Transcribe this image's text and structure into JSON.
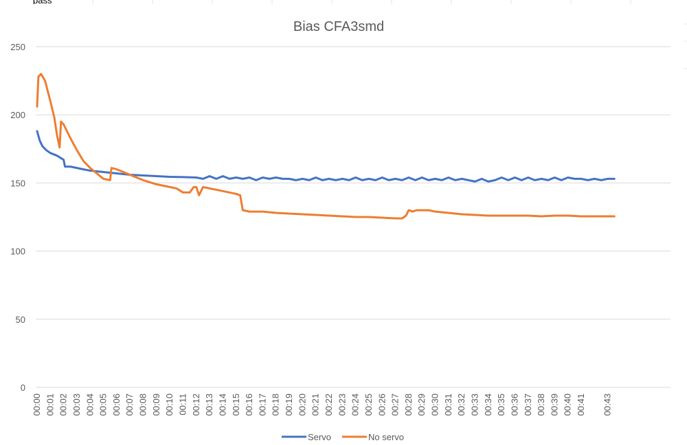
{
  "spreadsheet": {
    "top_cell_fragment": "pass",
    "colors": {
      "gridline": "#d9d9d9",
      "cell_line": "#e3e3e3"
    }
  },
  "chart_data": {
    "type": "line",
    "title": "Bias CFA3smd",
    "xlabel": "",
    "ylabel": "",
    "ylim": [
      0,
      250
    ],
    "yticks": [
      0,
      50,
      100,
      150,
      200,
      250
    ],
    "grid": true,
    "legend_position": "bottom",
    "x_tick_labels": [
      "00:00",
      "00:01",
      "00:02",
      "00:03",
      "00:04",
      "00:05",
      "00:06",
      "00:07",
      "00:08",
      "00:09",
      "00:10",
      "00:11",
      "00:12",
      "00:13",
      "00:14",
      "00:15",
      "00:16",
      "00:17",
      "00:18",
      "00:19",
      "00:20",
      "00:21",
      "00:22",
      "00:23",
      "00:24",
      "00:25",
      "00:26",
      "00:27",
      "00:28",
      "00:29",
      "00:30",
      "00:31",
      "00:32",
      "00:33",
      "00:34",
      "00:35",
      "00:36",
      "00:37",
      "00:38",
      "00:39",
      "00:40",
      "00:41",
      "00:43"
    ],
    "series": [
      {
        "name": "Servo",
        "color": "#4472c4",
        "points": [
          [
            "00:00",
            188
          ],
          [
            "00:00.2",
            181
          ],
          [
            "00:00.4",
            177
          ],
          [
            "00:00.7",
            174
          ],
          [
            "00:01",
            172
          ],
          [
            "00:01.5",
            170
          ],
          [
            "00:02",
            167
          ],
          [
            "00:02.1",
            162
          ],
          [
            "00:02.5",
            162
          ],
          [
            "00:03",
            161
          ],
          [
            "00:03.5",
            160
          ],
          [
            "00:04",
            159
          ],
          [
            "00:05",
            158
          ],
          [
            "00:06",
            157
          ],
          [
            "00:07",
            156
          ],
          [
            "00:08",
            155.5
          ],
          [
            "00:09",
            155
          ],
          [
            "00:10",
            154.5
          ],
          [
            "00:11",
            154.3
          ],
          [
            "00:12",
            154
          ],
          [
            "00:12.5",
            153
          ],
          [
            "00:13",
            155
          ],
          [
            "00:13.5",
            153
          ],
          [
            "00:14",
            155
          ],
          [
            "00:14.5",
            153
          ],
          [
            "00:15",
            154
          ],
          [
            "00:15.5",
            153
          ],
          [
            "00:16",
            154
          ],
          [
            "00:16.5",
            152
          ],
          [
            "00:17",
            154
          ],
          [
            "00:17.5",
            153
          ],
          [
            "00:18",
            154
          ],
          [
            "00:18.5",
            153
          ],
          [
            "00:19",
            153
          ],
          [
            "00:19.5",
            152
          ],
          [
            "00:20",
            153
          ],
          [
            "00:20.5",
            152
          ],
          [
            "00:21",
            154
          ],
          [
            "00:21.5",
            152
          ],
          [
            "00:22",
            153
          ],
          [
            "00:22.5",
            152
          ],
          [
            "00:23",
            153
          ],
          [
            "00:23.5",
            152
          ],
          [
            "00:24",
            154
          ],
          [
            "00:24.5",
            152
          ],
          [
            "00:25",
            153
          ],
          [
            "00:25.5",
            152
          ],
          [
            "00:26",
            154
          ],
          [
            "00:26.5",
            152
          ],
          [
            "00:27",
            153
          ],
          [
            "00:27.5",
            152
          ],
          [
            "00:28",
            154
          ],
          [
            "00:28.5",
            152
          ],
          [
            "00:29",
            154
          ],
          [
            "00:29.5",
            152
          ],
          [
            "00:30",
            153
          ],
          [
            "00:30.5",
            152
          ],
          [
            "00:31",
            154
          ],
          [
            "00:31.5",
            152
          ],
          [
            "00:32",
            153
          ],
          [
            "00:32.5",
            152
          ],
          [
            "00:33",
            151
          ],
          [
            "00:33.5",
            153
          ],
          [
            "00:34",
            151
          ],
          [
            "00:34.5",
            152
          ],
          [
            "00:35",
            154
          ],
          [
            "00:35.5",
            152
          ],
          [
            "00:36",
            154
          ],
          [
            "00:36.5",
            152
          ],
          [
            "00:37",
            154
          ],
          [
            "00:37.5",
            152
          ],
          [
            "00:38",
            153
          ],
          [
            "00:38.5",
            152
          ],
          [
            "00:39",
            154
          ],
          [
            "00:39.5",
            152
          ],
          [
            "00:40",
            154
          ],
          [
            "00:40.5",
            153
          ],
          [
            "00:41",
            153
          ],
          [
            "00:41.5",
            152
          ],
          [
            "00:42",
            153
          ],
          [
            "00:42.5",
            152
          ],
          [
            "00:43",
            153
          ],
          [
            "00:43.5",
            153
          ]
        ]
      },
      {
        "name": "No servo",
        "color": "#ed7d31",
        "points": [
          [
            "00:00",
            206
          ],
          [
            "00:00.1",
            228
          ],
          [
            "00:00.3",
            230
          ],
          [
            "00:00.6",
            225
          ],
          [
            "00:01",
            210
          ],
          [
            "00:01.3",
            198
          ],
          [
            "00:01.5",
            185
          ],
          [
            "00:01.7",
            176
          ],
          [
            "00:01.8",
            195
          ],
          [
            "00:02",
            193
          ],
          [
            "00:02.5",
            183
          ],
          [
            "00:03",
            174
          ],
          [
            "00:03.5",
            166
          ],
          [
            "00:04",
            161
          ],
          [
            "00:04.5",
            157
          ],
          [
            "00:05",
            153
          ],
          [
            "00:05.5",
            152
          ],
          [
            "00:05.6",
            161
          ],
          [
            "00:06",
            160
          ],
          [
            "00:06.5",
            158
          ],
          [
            "00:07",
            156
          ],
          [
            "00:07.5",
            154
          ],
          [
            "00:08",
            152
          ],
          [
            "00:09",
            149
          ],
          [
            "00:10",
            147
          ],
          [
            "00:10.5",
            146
          ],
          [
            "00:11",
            143
          ],
          [
            "00:11.5",
            143
          ],
          [
            "00:11.8",
            147
          ],
          [
            "00:12",
            147
          ],
          [
            "00:12.2",
            141
          ],
          [
            "00:12.5",
            147
          ],
          [
            "00:13",
            146
          ],
          [
            "00:14",
            144
          ],
          [
            "00:15",
            142
          ],
          [
            "00:15.3",
            141
          ],
          [
            "00:15.5",
            130
          ],
          [
            "00:16",
            129
          ],
          [
            "00:17",
            129
          ],
          [
            "00:18",
            128
          ],
          [
            "00:19",
            127.5
          ],
          [
            "00:20",
            127
          ],
          [
            "00:21",
            126.5
          ],
          [
            "00:22",
            126
          ],
          [
            "00:23",
            125.5
          ],
          [
            "00:24",
            125
          ],
          [
            "00:25",
            125
          ],
          [
            "00:26",
            124.5
          ],
          [
            "00:27",
            124
          ],
          [
            "00:27.5",
            124
          ],
          [
            "00:27.8",
            126
          ],
          [
            "00:28",
            130
          ],
          [
            "00:28.3",
            129
          ],
          [
            "00:28.6",
            130
          ],
          [
            "00:29",
            130
          ],
          [
            "00:29.5",
            130
          ],
          [
            "00:30",
            129
          ],
          [
            "00:31",
            128
          ],
          [
            "00:32",
            127
          ],
          [
            "00:33",
            126.5
          ],
          [
            "00:34",
            126
          ],
          [
            "00:35",
            126
          ],
          [
            "00:36",
            126
          ],
          [
            "00:37",
            126
          ],
          [
            "00:38",
            125.5
          ],
          [
            "00:39",
            126
          ],
          [
            "00:40",
            126
          ],
          [
            "00:41",
            125.5
          ],
          [
            "00:42",
            125.5
          ],
          [
            "00:43",
            125.5
          ],
          [
            "00:43.5",
            125.5
          ]
        ]
      }
    ]
  }
}
